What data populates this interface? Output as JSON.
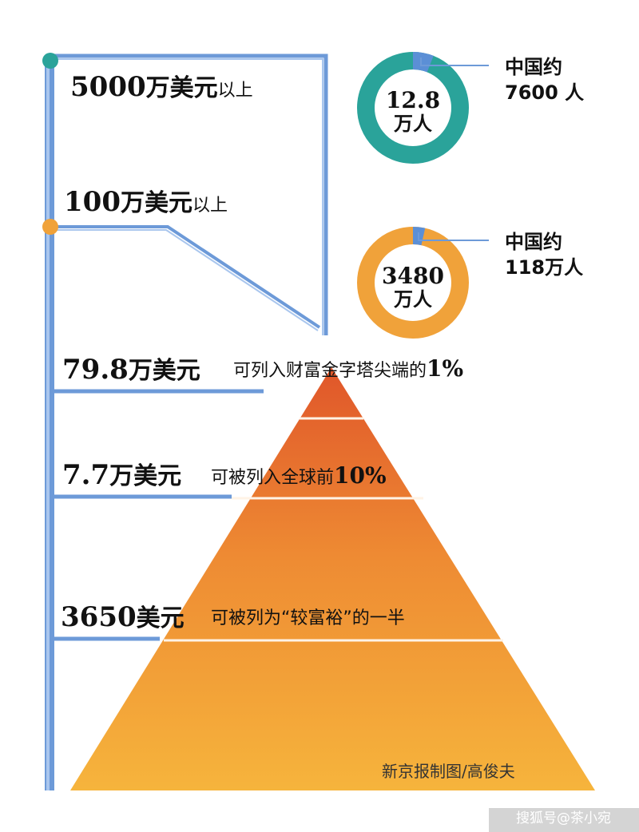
{
  "tiers": {
    "t5000": {
      "value": "5000",
      "unit": "万美元",
      "suffix": "以上"
    },
    "t100": {
      "value": "100",
      "unit": "万美元",
      "suffix": "以上"
    },
    "t798": {
      "value": "79.8",
      "unit": "万美元",
      "desc_text": "可列入财富金字塔尖端的",
      "desc_pct": "1%"
    },
    "t77": {
      "value": "7.7",
      "unit": "万美元",
      "desc_text": "可被列入全球前",
      "desc_pct": "10%"
    },
    "t3650": {
      "value": "3650",
      "unit": "美元",
      "desc_text": "可被列为“较富裕”的一半"
    }
  },
  "ring_top": {
    "line1": "12.8",
    "line2": "万人",
    "side1": "中国约",
    "side2": "7600 人",
    "color": "#2aa39a",
    "accent": "#5b8fd6",
    "share": 0.06
  },
  "ring_bottom": {
    "line1": "3480",
    "line2": "万人",
    "side1": "中国约",
    "side2": "118万人",
    "color": "#f0a23a",
    "accent": "#5b8fd6",
    "share": 0.035
  },
  "colors": {
    "bar": "#5b8fd6",
    "dot_top": "#2aa39a",
    "dot_mid": "#f0a23a",
    "pyr_top": "#e0562a",
    "pyr_bottom": "#f3ad3a"
  },
  "credit": "新京报制图/高俊夫",
  "watermark": "搜狐号@茶小宛"
}
